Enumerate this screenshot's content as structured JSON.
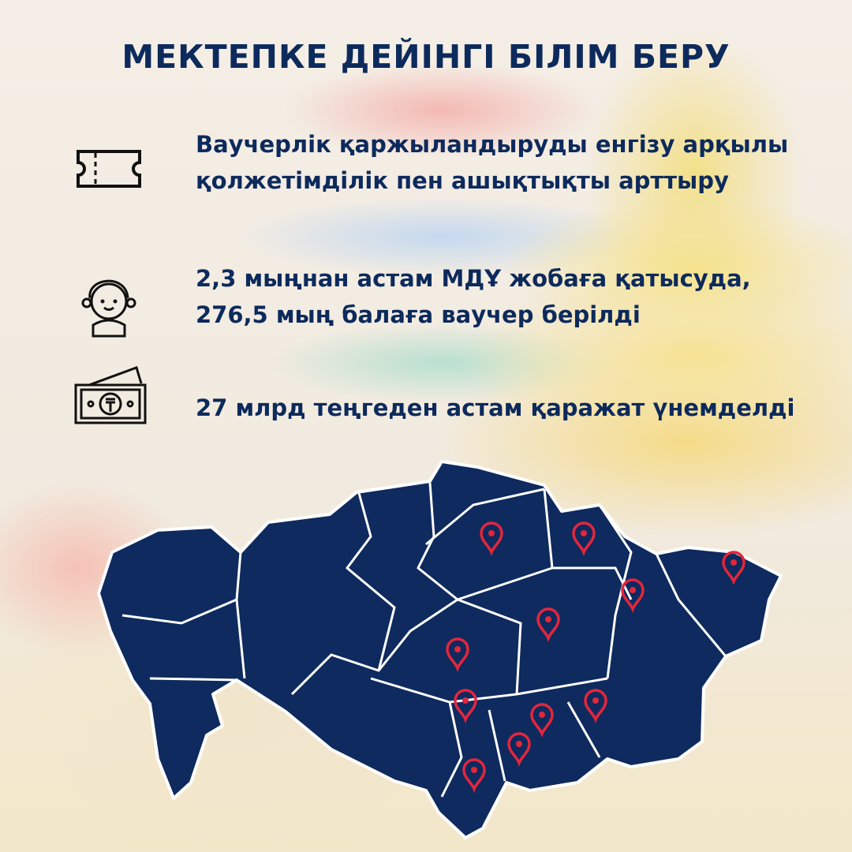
{
  "title": "МЕКТЕПКЕ ДЕЙІНГІ БІЛІМ БЕРУ",
  "items": [
    {
      "icon": "ticket-icon",
      "text": "Ваучерлік қаржыландыруды енгізу арқылы қолжетімділік пен ашықтықты арттыру"
    },
    {
      "icon": "child-icon",
      "text": "2,3 мыңнан астам МДҰ жобаға қатысуда, 276,5 мың балаға ваучер берілді"
    },
    {
      "icon": "money-icon",
      "text": "27 млрд теңгеден астам қаражат үнемделді"
    }
  ],
  "colors": {
    "text": "#0d2a5c",
    "map_fill": "#0e2a5e",
    "pin": "#e3263c"
  },
  "map": {
    "icon": "kazakhstan-map",
    "pin_count": 11
  }
}
